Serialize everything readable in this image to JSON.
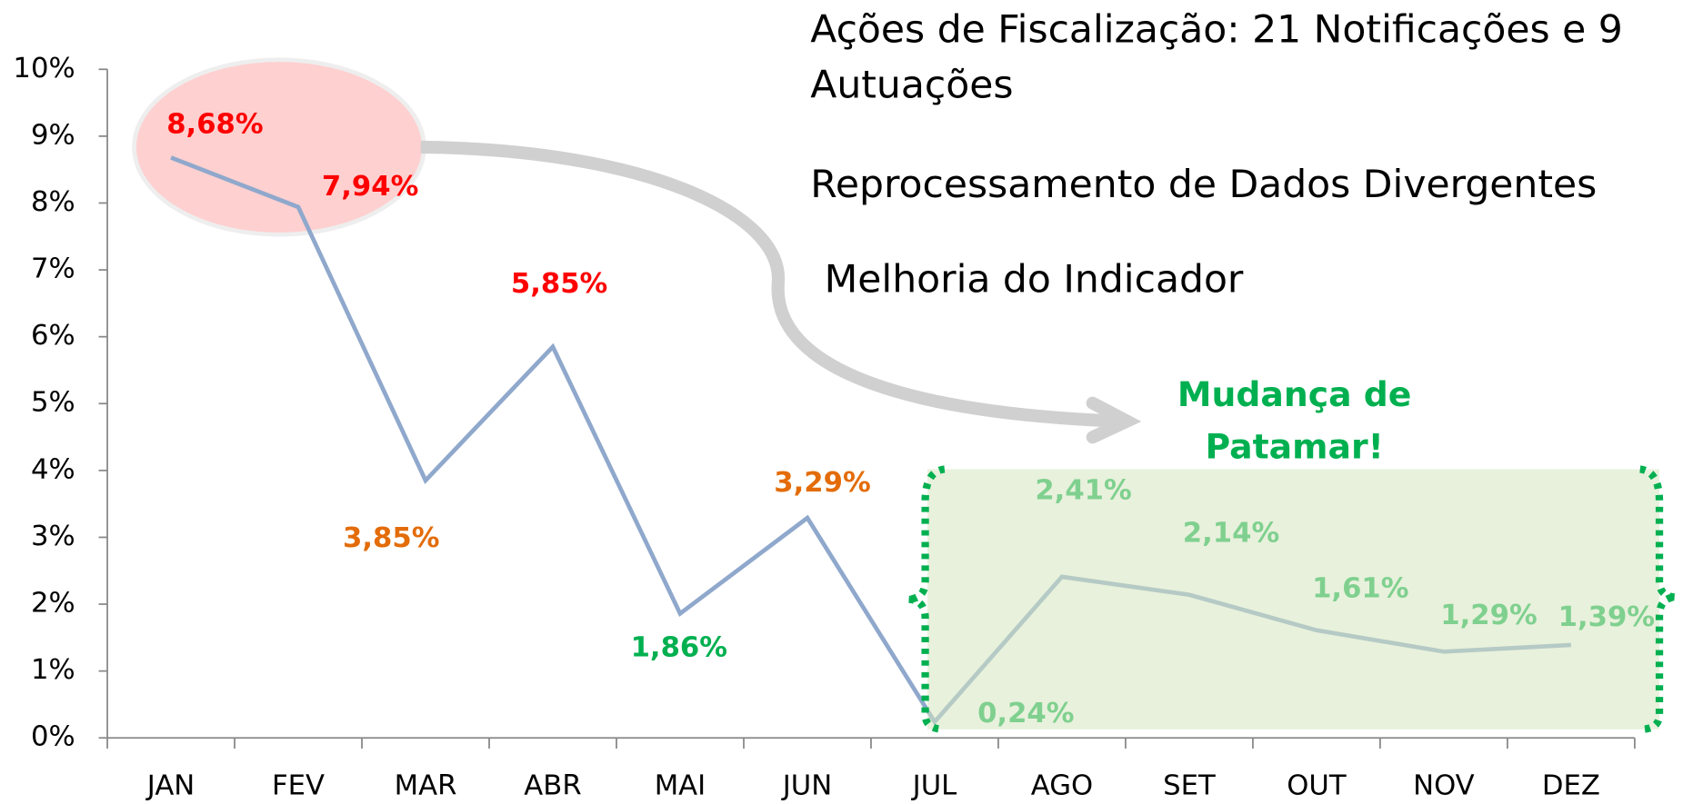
{
  "chart_data": {
    "type": "line",
    "annotations": [
      "Ações de Fiscalização:  21 Notificações e 9",
      "Autuações",
      "Reprocessamento de Dados Divergentes",
      "Melhoria do Indicador",
      "Mudança de",
      "Patamar!"
    ],
    "categories": [
      "JAN",
      "FEV",
      "MAR",
      "ABR",
      "MAI",
      "JUN",
      "JUL",
      "AGO",
      "SET",
      "OUT",
      "NOV",
      "DEZ"
    ],
    "series": [
      {
        "color": "#8fa8cc",
        "values": [
          8.68,
          7.94,
          3.85,
          5.85,
          1.86,
          3.29,
          0.24,
          2.41,
          2.14,
          1.61,
          1.29,
          1.39
        ],
        "value_labels": [
          "8,68%",
          "7,94%",
          "3,85%",
          "5,85%",
          "1,86%",
          "3,29%",
          "0,24%",
          "2,41%",
          "2,14%",
          "1,61%",
          "1,29%",
          "1,39%"
        ],
        "value_label_colors": [
          "#ff0000",
          "#ff0000",
          "#e36c09",
          "#ff0000",
          "#00b050",
          "#e36c09",
          "#7fd08f",
          "#7fd08f",
          "#7fd08f",
          "#7fd08f",
          "#7fd08f",
          "#7fd08f"
        ]
      }
    ],
    "ylim": [
      0,
      10
    ],
    "yticks": [
      {
        "value": 0,
        "label": "0%"
      },
      {
        "value": 1,
        "label": "1%"
      },
      {
        "value": 2,
        "label": "2%"
      },
      {
        "value": 3,
        "label": "3%"
      },
      {
        "value": 4,
        "label": "4%"
      },
      {
        "value": 5,
        "label": "5%"
      },
      {
        "value": 6,
        "label": "6%"
      },
      {
        "value": 7,
        "label": "7%"
      },
      {
        "value": 8,
        "label": "8%"
      },
      {
        "value": 9,
        "label": "9%"
      },
      {
        "value": 10,
        "label": "10%"
      }
    ]
  }
}
